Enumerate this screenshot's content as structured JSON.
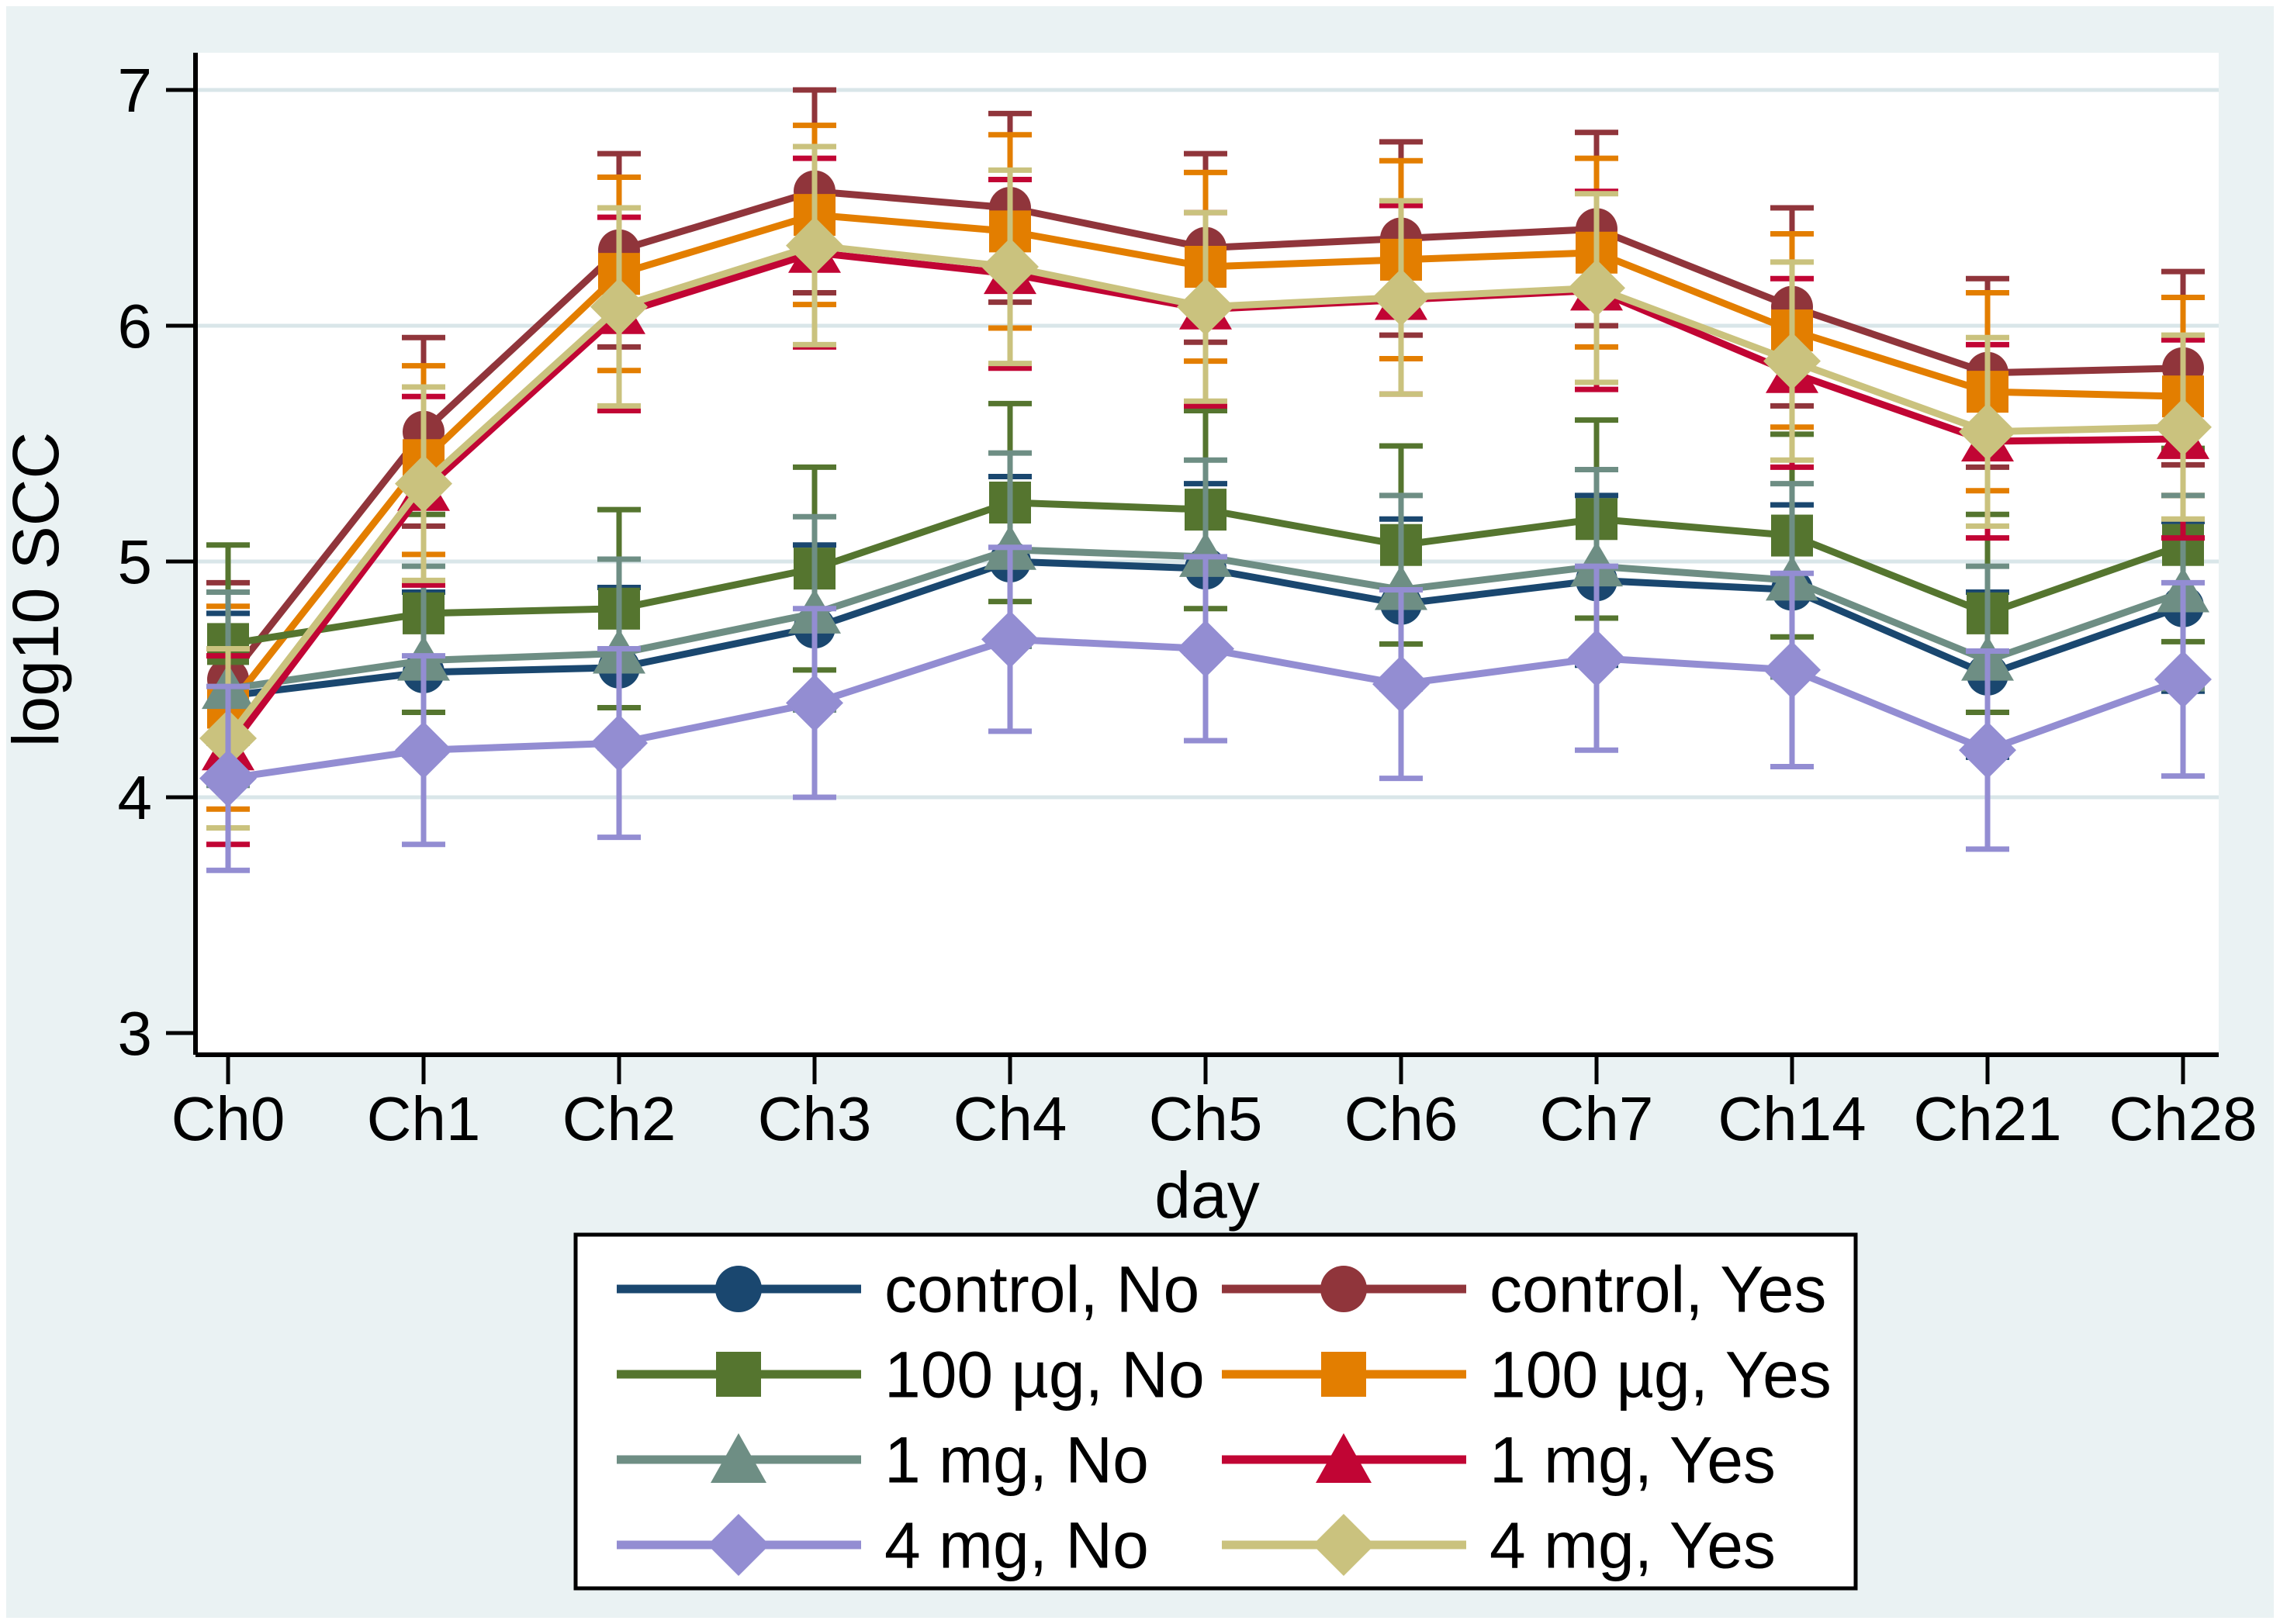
{
  "chart_data": {
    "type": "line",
    "title": "",
    "xlabel": "day",
    "ylabel": "log10 SCC",
    "x_categories": [
      "Ch0",
      "Ch1",
      "Ch2",
      "Ch3",
      "Ch4",
      "Ch5",
      "Ch6",
      "Ch7",
      "Ch14",
      "Ch21",
      "Ch28"
    ],
    "y_ticks": [
      3,
      4,
      5,
      6,
      7
    ],
    "grid_y_values": [
      4,
      5,
      6,
      7
    ],
    "ylim": [
      2.9,
      7.16
    ],
    "grid": true,
    "error_bars": true,
    "legend_position": "bottom",
    "series": [
      {
        "key": "control_no",
        "label": "control, No",
        "marker": "circle",
        "color": "#1a476f",
        "values": [
          4.43,
          4.53,
          4.55,
          4.72,
          5.0,
          4.97,
          4.82,
          4.92,
          4.88,
          4.52,
          4.81
        ],
        "ci": [
          0.35,
          0.34,
          0.34,
          0.35,
          0.36,
          0.36,
          0.36,
          0.36,
          0.36,
          0.35,
          0.36
        ]
      },
      {
        "key": "100ug_no",
        "label": "100 µg, No",
        "marker": "square",
        "color": "#55752f",
        "values": [
          4.65,
          4.78,
          4.8,
          4.97,
          5.25,
          5.22,
          5.07,
          5.18,
          5.11,
          4.78,
          5.07
        ],
        "ci": [
          0.42,
          0.42,
          0.42,
          0.43,
          0.42,
          0.42,
          0.42,
          0.42,
          0.43,
          0.42,
          0.41
        ]
      },
      {
        "key": "1mg_no",
        "label": "1 mg, No",
        "marker": "triangle",
        "color": "#6e8e84",
        "values": [
          4.46,
          4.58,
          4.61,
          4.78,
          5.05,
          5.02,
          4.88,
          4.98,
          4.92,
          4.58,
          4.87
        ],
        "ci": [
          0.41,
          0.4,
          0.4,
          0.41,
          0.41,
          0.41,
          0.4,
          0.41,
          0.41,
          0.4,
          0.41
        ]
      },
      {
        "key": "4mg_no",
        "label": "4 mg, No",
        "marker": "diamond",
        "color": "#938dd2",
        "values": [
          4.08,
          4.2,
          4.23,
          4.4,
          4.67,
          4.63,
          4.48,
          4.59,
          4.54,
          4.2,
          4.5
        ],
        "ci": [
          0.39,
          0.4,
          0.4,
          0.4,
          0.39,
          0.39,
          0.4,
          0.39,
          0.41,
          0.42,
          0.41
        ]
      },
      {
        "key": "control_yes",
        "label": "control, Yes",
        "marker": "circle",
        "color": "#90353b",
        "values": [
          4.5,
          5.55,
          6.32,
          6.57,
          6.5,
          6.33,
          6.37,
          6.41,
          6.08,
          5.8,
          5.82
        ],
        "ci": [
          0.41,
          0.4,
          0.41,
          0.43,
          0.4,
          0.4,
          0.41,
          0.41,
          0.42,
          0.4,
          0.41
        ]
      },
      {
        "key": "100ug_yes",
        "label": "100 µg, Yes",
        "marker": "square",
        "color": "#e37e00",
        "values": [
          4.38,
          5.43,
          6.22,
          6.47,
          6.4,
          6.25,
          6.28,
          6.31,
          5.98,
          5.72,
          5.7
        ],
        "ci": [
          0.43,
          0.4,
          0.41,
          0.38,
          0.41,
          0.4,
          0.42,
          0.4,
          0.41,
          0.42,
          0.42
        ]
      },
      {
        "key": "1mg_yes",
        "label": "1 mg, Yes",
        "marker": "triangle",
        "color": "#c10534",
        "values": [
          4.2,
          5.3,
          6.05,
          6.31,
          6.22,
          6.07,
          6.11,
          6.15,
          5.8,
          5.51,
          5.52
        ],
        "ci": [
          0.4,
          0.4,
          0.41,
          0.4,
          0.4,
          0.41,
          0.4,
          0.42,
          0.4,
          0.41,
          0.42
        ]
      },
      {
        "key": "4mg_yes",
        "label": "4 mg, Yes",
        "marker": "diamond",
        "color": "#cac27e",
        "values": [
          4.25,
          5.33,
          6.08,
          6.34,
          6.25,
          6.08,
          6.12,
          6.16,
          5.85,
          5.55,
          5.57
        ],
        "ci": [
          0.38,
          0.41,
          0.42,
          0.42,
          0.41,
          0.4,
          0.41,
          0.4,
          0.42,
          0.4,
          0.39
        ]
      }
    ]
  },
  "legend": {
    "column1": [
      "control_no",
      "100ug_no",
      "1mg_no",
      "4mg_no"
    ],
    "column2": [
      "control_yes",
      "100ug_yes",
      "1mg_yes",
      "4mg_yes"
    ]
  },
  "colors": {
    "page_bg": "#ffffff",
    "canvas_bg": "#eaf2f3",
    "plot_bg": "#ffffff",
    "grid": "#d9e6e9",
    "axis": "#000000",
    "legend_bg": "#ffffff",
    "legend_border": "#000000"
  }
}
